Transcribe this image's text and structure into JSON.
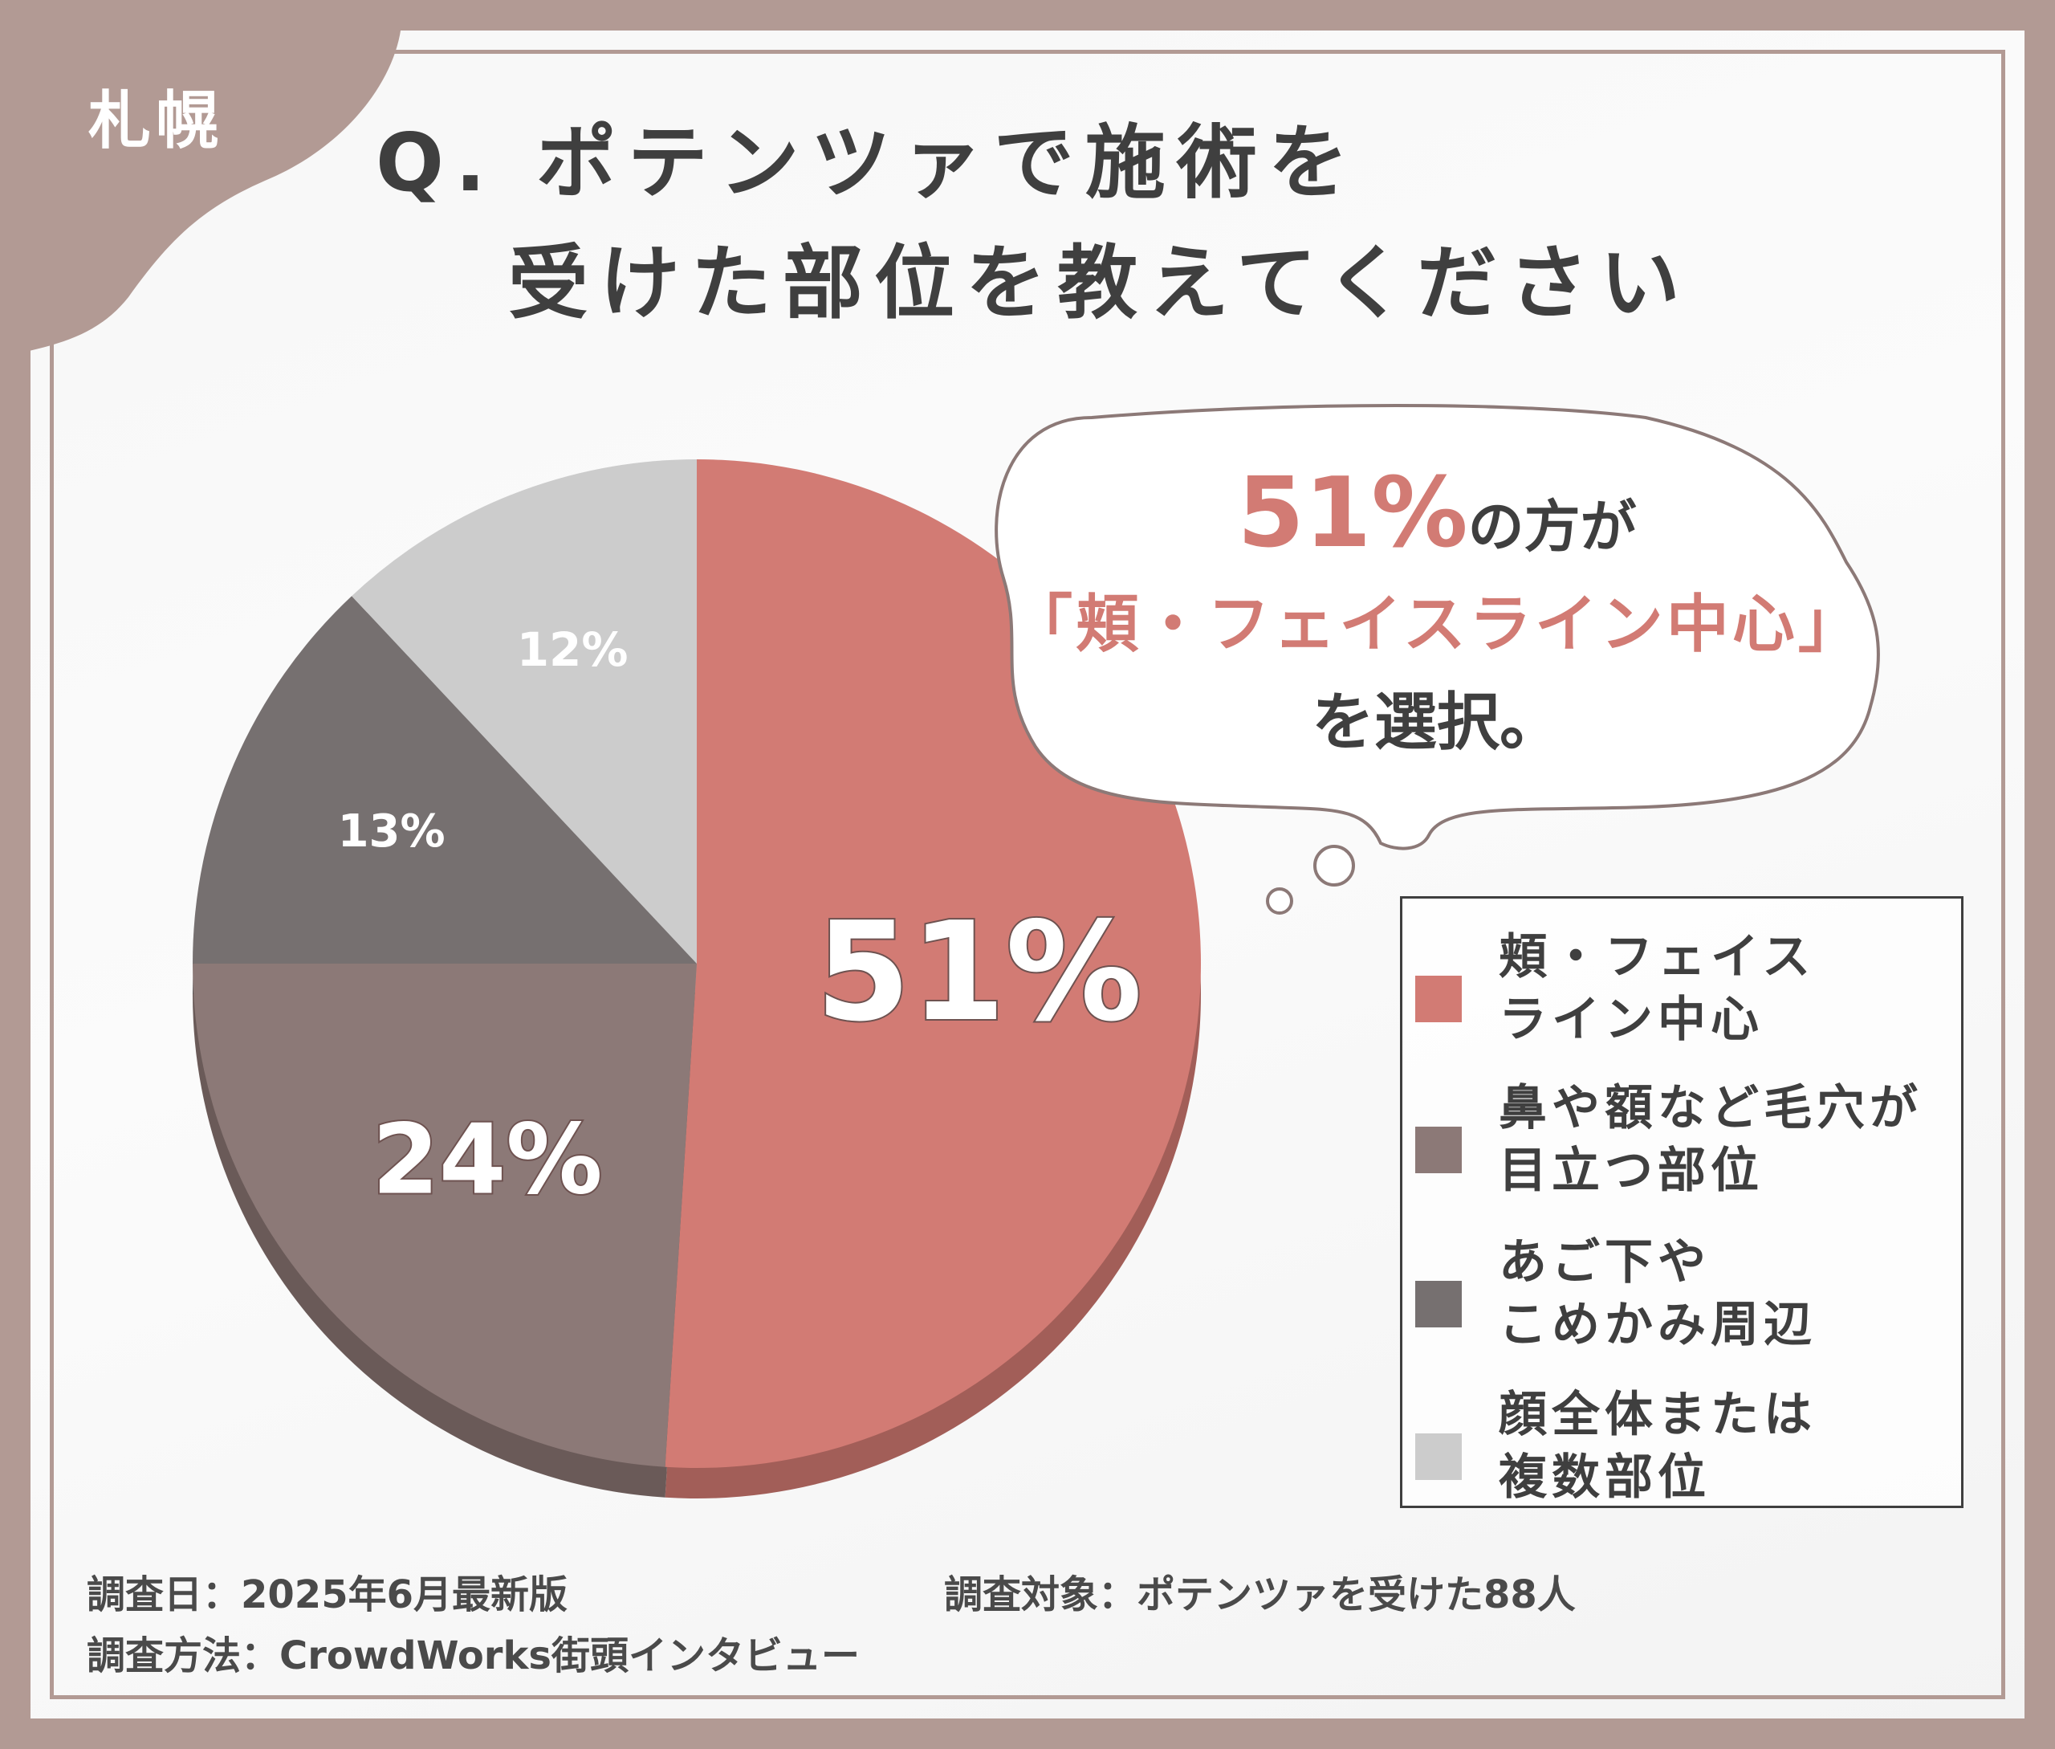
{
  "city": "札幌",
  "title": {
    "line1": "Q. ポテンツァで施術を",
    "line2": "受けた部位を教えてください"
  },
  "callout": {
    "percent": "51%",
    "suffix": "の方が",
    "highlight": "「頬・フェイスライン中心」",
    "tail": "を選択。"
  },
  "chart_data": {
    "type": "pie",
    "start": "12 o'clock, clockwise",
    "slices": [
      {
        "label": "頬・フェイスライン中心",
        "value": 51,
        "display": "51%",
        "color": "#d27b74",
        "shadow": "#a25e58"
      },
      {
        "label": "鼻や額など毛穴が目立つ部位",
        "value": 24,
        "display": "24%",
        "color": "#8c7977",
        "shadow": "#6a5a58"
      },
      {
        "label": "あご下やこめかみ周辺",
        "value": 13,
        "display": "13%",
        "color": "#767070",
        "shadow": "#5a5555"
      },
      {
        "label": "顔全体または複数部位",
        "value": 12,
        "display": "12%",
        "color": "#cccccc",
        "shadow": "#a8a8a8"
      }
    ]
  },
  "legend": {
    "items": [
      {
        "label": "頬・フェイス\nライン中心",
        "color": "#d27b74"
      },
      {
        "label": "鼻や額など毛穴が\n目立つ部位",
        "color": "#8c7977"
      },
      {
        "label": "あご下や\nこめかみ周辺",
        "color": "#767070"
      },
      {
        "label": "顔全体または\n複数部位",
        "color": "#cccccc"
      }
    ]
  },
  "footer": {
    "date": "調査日：2025年6月最新版",
    "target": "調査対象：ポテンツァを受けた88人",
    "method": "調査方法：CrowdWorks街頭インタビュー"
  }
}
